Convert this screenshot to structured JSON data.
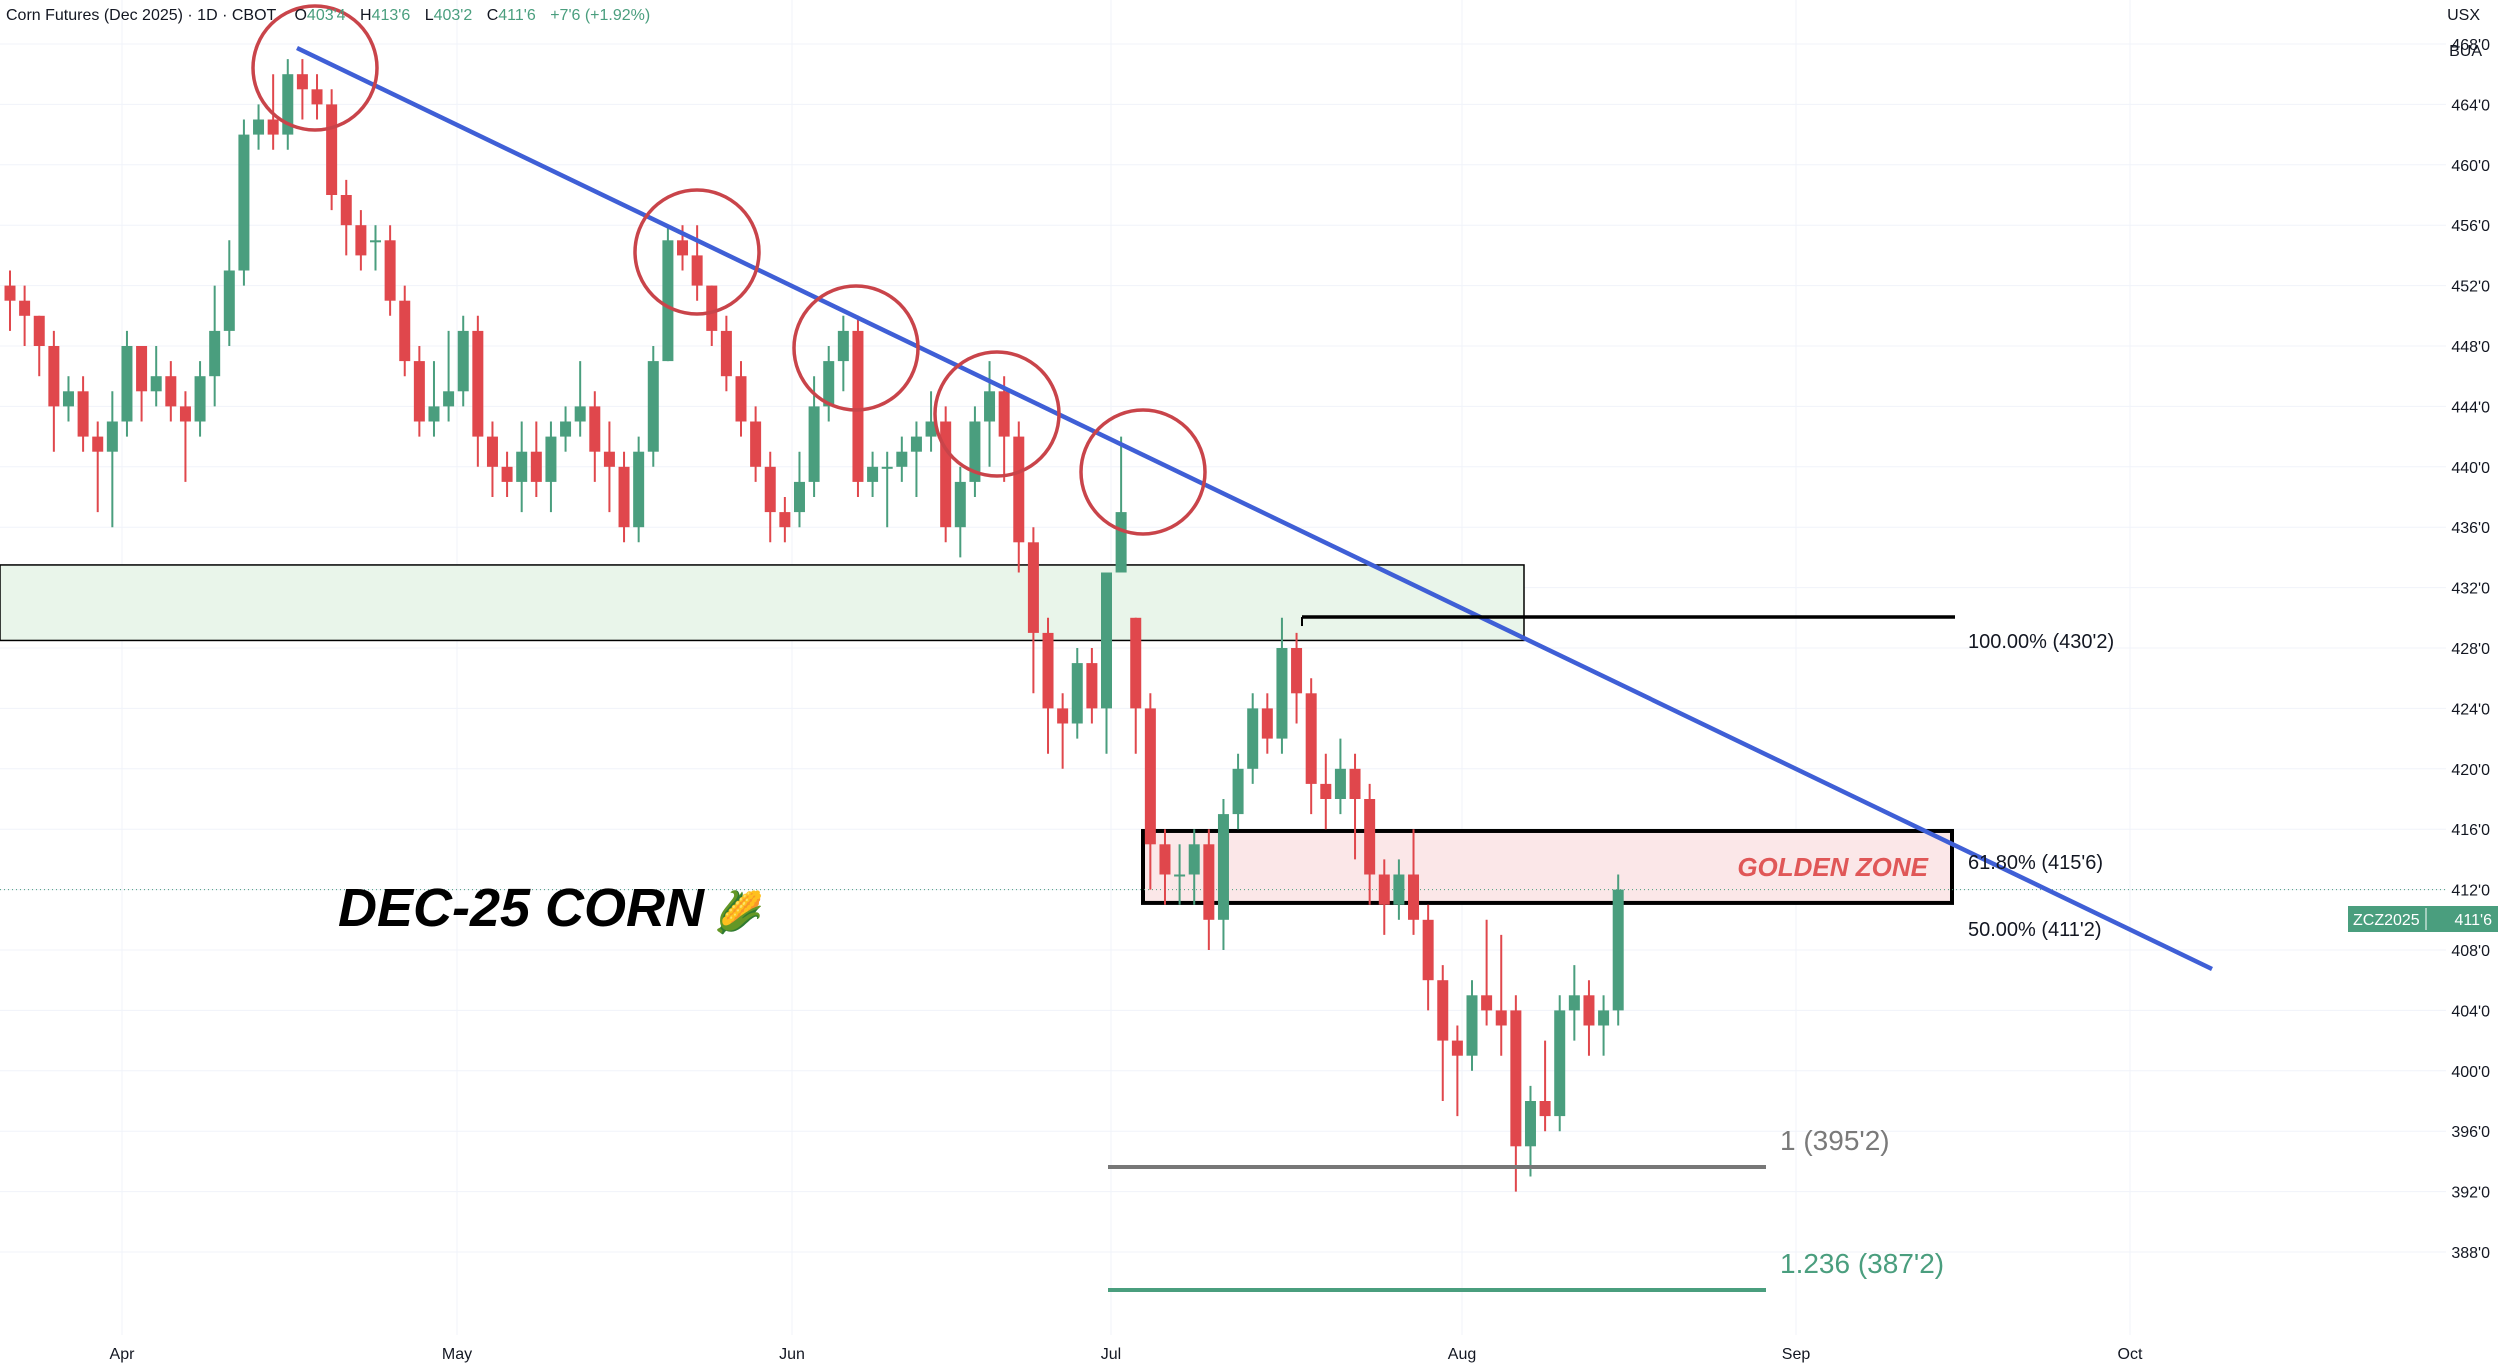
{
  "header": {
    "symbol_desc": "Corn Futures (Dec 2025) · 1D · CBOT",
    "o_label": "O",
    "o_value": "403'4",
    "h_label": "H",
    "h_value": "413'6",
    "l_label": "L",
    "l_value": "403'2",
    "c_label": "C",
    "c_value": "411'6",
    "change": "+7'6 (+1.92%)"
  },
  "currency": "USX",
  "currency_sub": "BUA",
  "price_badge": {
    "symbol": "ZCZ2025",
    "value": "411'6"
  },
  "overlay_title": "DEC-25 CORN",
  "overlay_emoji": "🌽",
  "golden_zone_label": "GOLDEN ZONE",
  "colors": {
    "up": "#4a9e7e",
    "down": "#e0474c",
    "trendline": "#3f5fd6",
    "circle": "#c9444a",
    "zone_green": "#e9f5ea",
    "zone_red": "#fbe7e8",
    "ext_green": "#4a9e7e",
    "ext_gray": "#7a7a7a"
  },
  "chart_data": {
    "type": "candlestick",
    "title": "Corn Futures (Dec 2025)",
    "yaxis_ticks": [
      "468'0",
      "464'0",
      "460'0",
      "456'0",
      "452'0",
      "448'0",
      "444'0",
      "440'0",
      "436'0",
      "432'0",
      "428'0",
      "424'0",
      "420'0",
      "416'0",
      "412'0",
      "408'0",
      "404'0",
      "400'0",
      "396'0",
      "392'0",
      "388'0"
    ],
    "xaxis_ticks": [
      "Apr",
      "May",
      "Jun",
      "Jul",
      "Aug",
      "Sep",
      "Oct"
    ],
    "ylim": [
      384,
      470
    ],
    "candles": [
      [
        0,
        452,
        453,
        449,
        451
      ],
      [
        1,
        451,
        452,
        448,
        450
      ],
      [
        2,
        450,
        450,
        446,
        448
      ],
      [
        3,
        448,
        449,
        441,
        444
      ],
      [
        4,
        444,
        446,
        443,
        445
      ],
      [
        5,
        445,
        446,
        441,
        442
      ],
      [
        6,
        442,
        443,
        437,
        441
      ],
      [
        7,
        441,
        445,
        436,
        443
      ],
      [
        8,
        443,
        449,
        442,
        448
      ],
      [
        9,
        448,
        448,
        443,
        445
      ],
      [
        10,
        445,
        448,
        444,
        446
      ],
      [
        11,
        446,
        447,
        443,
        444
      ],
      [
        12,
        444,
        445,
        439,
        443
      ],
      [
        13,
        443,
        447,
        442,
        446
      ],
      [
        14,
        446,
        452,
        444,
        449
      ],
      [
        15,
        449,
        455,
        448,
        453
      ],
      [
        16,
        453,
        463,
        452,
        462
      ],
      [
        17,
        462,
        464,
        461,
        463
      ],
      [
        18,
        463,
        466,
        461,
        462
      ],
      [
        19,
        462,
        467,
        461,
        466
      ],
      [
        20,
        466,
        467,
        463,
        465
      ],
      [
        21,
        465,
        466,
        463,
        464
      ],
      [
        22,
        464,
        465,
        457,
        458
      ],
      [
        23,
        458,
        459,
        454,
        456
      ],
      [
        24,
        456,
        457,
        453,
        454
      ],
      [
        25,
        455,
        456,
        453,
        455
      ],
      [
        26,
        455,
        456,
        450,
        451
      ],
      [
        27,
        451,
        452,
        446,
        447
      ],
      [
        28,
        447,
        448,
        442,
        443
      ],
      [
        29,
        443,
        447,
        442,
        444
      ],
      [
        30,
        444,
        449,
        443,
        445
      ],
      [
        31,
        445,
        450,
        444,
        449
      ],
      [
        32,
        449,
        450,
        440,
        442
      ],
      [
        33,
        442,
        443,
        438,
        440
      ],
      [
        34,
        440,
        441,
        438,
        439
      ],
      [
        35,
        439,
        443,
        437,
        441
      ],
      [
        36,
        441,
        443,
        438,
        439
      ],
      [
        37,
        439,
        443,
        437,
        442
      ],
      [
        38,
        442,
        444,
        441,
        443
      ],
      [
        39,
        443,
        447,
        442,
        444
      ],
      [
        40,
        444,
        445,
        439,
        441
      ],
      [
        41,
        441,
        443,
        437,
        440
      ],
      [
        42,
        440,
        441,
        435,
        436
      ],
      [
        43,
        436,
        442,
        435,
        441
      ],
      [
        44,
        441,
        448,
        440,
        447
      ],
      [
        45,
        447,
        456,
        447,
        455
      ],
      [
        46,
        455,
        456,
        453,
        454
      ],
      [
        47,
        454,
        456,
        451,
        452
      ],
      [
        48,
        452,
        452,
        448,
        449
      ],
      [
        49,
        449,
        450,
        445,
        446
      ],
      [
        50,
        446,
        447,
        442,
        443
      ],
      [
        51,
        443,
        444,
        439,
        440
      ],
      [
        52,
        440,
        441,
        435,
        437
      ],
      [
        53,
        437,
        438,
        435,
        436
      ],
      [
        54,
        437,
        441,
        436,
        439
      ],
      [
        55,
        439,
        446,
        438,
        444
      ],
      [
        56,
        444,
        448,
        443,
        447
      ],
      [
        57,
        447,
        450,
        445,
        449
      ],
      [
        58,
        449,
        450,
        438,
        439
      ],
      [
        59,
        439,
        441,
        438,
        440
      ],
      [
        60,
        440,
        441,
        436,
        440
      ],
      [
        61,
        440,
        442,
        439,
        441
      ],
      [
        62,
        441,
        443,
        438,
        442
      ],
      [
        63,
        442,
        445,
        441,
        443
      ],
      [
        64,
        443,
        444,
        435,
        436
      ],
      [
        65,
        436,
        440,
        434,
        439
      ],
      [
        66,
        439,
        444,
        438,
        443
      ],
      [
        67,
        443,
        447,
        440,
        445
      ],
      [
        68,
        445,
        446,
        439,
        442
      ],
      [
        69,
        442,
        443,
        433,
        435
      ],
      [
        70,
        435,
        436,
        425,
        429
      ],
      [
        71,
        429,
        430,
        421,
        424
      ],
      [
        72,
        424,
        425,
        420,
        423
      ],
      [
        73,
        423,
        428,
        422,
        427
      ],
      [
        74,
        427,
        428,
        423,
        424
      ],
      [
        75,
        424,
        433,
        421,
        433
      ],
      [
        76,
        433,
        442,
        433,
        437
      ],
      [
        77,
        430,
        430,
        421,
        424
      ],
      [
        78,
        424,
        425,
        412,
        415
      ],
      [
        79,
        415,
        416,
        411,
        413
      ],
      [
        80,
        413,
        415,
        411,
        413
      ],
      [
        81,
        413,
        416,
        411,
        415
      ],
      [
        82,
        415,
        416,
        408,
        410
      ],
      [
        83,
        410,
        418,
        408,
        417
      ],
      [
        84,
        417,
        421,
        416,
        420
      ],
      [
        85,
        420,
        425,
        419,
        424
      ],
      [
        86,
        424,
        425,
        421,
        422
      ],
      [
        87,
        422,
        430,
        421,
        428
      ],
      [
        88,
        428,
        429,
        423,
        425
      ],
      [
        89,
        425,
        426,
        417,
        419
      ],
      [
        90,
        419,
        421,
        416,
        418
      ],
      [
        91,
        418,
        422,
        417,
        420
      ],
      [
        92,
        420,
        421,
        414,
        418
      ],
      [
        93,
        418,
        419,
        411,
        413
      ],
      [
        94,
        413,
        414,
        409,
        411
      ],
      [
        95,
        411,
        414,
        410,
        413
      ],
      [
        96,
        413,
        416,
        409,
        410
      ],
      [
        97,
        410,
        411,
        404,
        406
      ],
      [
        98,
        406,
        407,
        398,
        402
      ],
      [
        99,
        402,
        403,
        397,
        401
      ],
      [
        100,
        401,
        406,
        400,
        405
      ],
      [
        101,
        405,
        410,
        403,
        404
      ],
      [
        102,
        404,
        409,
        401,
        403
      ],
      [
        103,
        404,
        405,
        392,
        395
      ],
      [
        104,
        395,
        399,
        393,
        398
      ],
      [
        105,
        398,
        402,
        396,
        397
      ],
      [
        106,
        397,
        405,
        396,
        404
      ],
      [
        107,
        404,
        407,
        402,
        405
      ],
      [
        108,
        405,
        406,
        401,
        403
      ],
      [
        109,
        403,
        405,
        401,
        404
      ],
      [
        110,
        404,
        413,
        403,
        412
      ]
    ],
    "resistance_zone": [
      428.5,
      433.5
    ],
    "golden_zone": [
      411.25,
      415.75
    ],
    "fib_levels": [
      {
        "label": "100.00% (430'2)",
        "value": 430.25
      },
      {
        "label": "61.80% (415'6)",
        "value": 415.75
      },
      {
        "label": "50.00% (411'2)",
        "value": 411.25
      }
    ],
    "extensions": [
      {
        "label": "1 (395'2)",
        "value": 395.25
      },
      {
        "label": "1.236 (387'2)",
        "value": 387.25
      }
    ]
  }
}
